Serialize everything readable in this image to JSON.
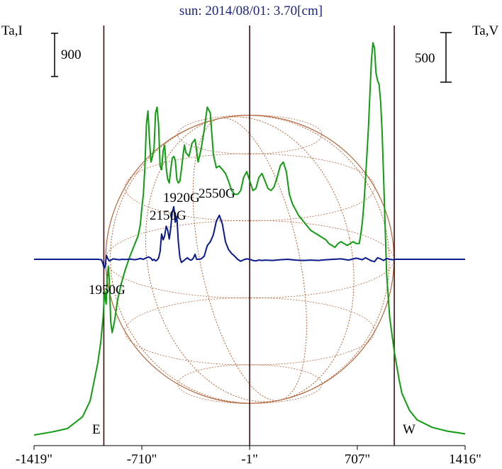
{
  "title": "sun: 2014/08/01: 3.70[cm]",
  "left_axis_label": "Ta,I",
  "right_axis_label": "Ta,V",
  "left_scale_label": "900",
  "right_scale_label": "500",
  "east_label": "E",
  "west_label": "W",
  "x_tick_labels": [
    "-1419\"",
    "-710\"",
    "-1\"",
    "707\"",
    "1416\""
  ],
  "annotations": [
    "1920G",
    "2550G",
    "2150G",
    "1950G"
  ],
  "colors": {
    "intensity": "#119c11",
    "polarization": "#0a1a8c",
    "disk": "#b5643a",
    "markers": "#3a1010",
    "title": "#1a237e"
  },
  "chart_data": {
    "type": "line",
    "title": "sun: 2014/08/01: 3.70[cm]",
    "xlabel": "",
    "ylabel": "Ta,I",
    "ylabel_right": "Ta,V",
    "xlim": [
      -1419,
      1416
    ],
    "x_ticks": [
      -1419,
      -710,
      -1,
      707,
      1416
    ],
    "vertical_markers": [
      -960,
      -1,
      950
    ],
    "disk_radius": 948,
    "series": [
      {
        "x": [
          -1419,
          -1300,
          -1200,
          -1100,
          -1050,
          -1000,
          -980,
          -965,
          -955,
          -945,
          -938,
          -930,
          -922,
          -915,
          -905,
          -890,
          -870,
          -845,
          -820,
          -790,
          -760,
          -735,
          -720,
          -710,
          -700,
          -690,
          -680,
          -670,
          -660,
          -650,
          -640,
          -630,
          -620,
          -610,
          -600,
          -590,
          -580,
          -570,
          -560,
          -550,
          -540,
          -530,
          -520,
          -510,
          -500,
          -490,
          -480,
          -470,
          -460,
          -450,
          -440,
          -430,
          -420,
          -400,
          -380,
          -360,
          -340,
          -320,
          -300,
          -280,
          -260,
          -240,
          -220,
          -200,
          -180,
          -160,
          -140,
          -120,
          -100,
          -80,
          -60,
          -40,
          -20,
          0,
          20,
          40,
          60,
          80,
          100,
          120,
          140,
          160,
          180,
          200,
          220,
          240,
          260,
          280,
          300,
          320,
          340,
          360,
          380,
          400,
          420,
          440,
          460,
          480,
          500,
          520,
          540,
          560,
          580,
          600,
          620,
          640,
          660,
          680,
          700,
          720,
          730,
          740,
          750,
          760,
          770,
          780,
          790,
          800,
          810,
          820,
          830,
          840,
          850,
          860,
          870,
          880,
          890,
          900,
          920,
          950,
          980,
          1000,
          1050,
          1100,
          1200,
          1300,
          1416
        ],
        "values": [
          0,
          80,
          170,
          480,
          900,
          1900,
          2450,
          3100,
          3800,
          3450,
          4150,
          4450,
          3900,
          3000,
          2700,
          3000,
          3550,
          4000,
          4350,
          4700,
          5000,
          5250,
          5550,
          6000,
          6350,
          7050,
          8200,
          8550,
          7800,
          7200,
          7350,
          7550,
          8500,
          8650,
          8200,
          7100,
          7000,
          7500,
          7650,
          7050,
          6750,
          6650,
          7000,
          7300,
          7350,
          7250,
          6750,
          6650,
          6700,
          7000,
          7350,
          7650,
          7450,
          7350,
          7700,
          7800,
          7200,
          7550,
          8050,
          8650,
          8500,
          7400,
          7050,
          7100,
          7000,
          6900,
          6700,
          6450,
          6350,
          6350,
          6450,
          6800,
          6950,
          6700,
          6450,
          6500,
          6800,
          6900,
          6700,
          6500,
          6450,
          6550,
          6800,
          7100,
          7200,
          6950,
          6350,
          6100,
          5950,
          5800,
          5700,
          5600,
          5500,
          5400,
          5350,
          5300,
          5250,
          5200,
          5150,
          5050,
          5000,
          4950,
          5050,
          5100,
          5050,
          5000,
          5050,
          5100,
          5050,
          5050,
          5300,
          5600,
          6100,
          6700,
          7400,
          8100,
          9000,
          9900,
          10350,
          10200,
          9550,
          9350,
          9250,
          8800,
          8000,
          6800,
          5500,
          4250,
          3100,
          2200,
          1500,
          1100,
          650,
          400,
          200,
          100,
          30
        ]
      },
      {
        "x": [
          -1419,
          -1000,
          -975,
          -965,
          -958,
          -950,
          -943,
          -935,
          -925,
          -912,
          -900,
          -880,
          -860,
          -840,
          -820,
          -800,
          -780,
          -760,
          -740,
          -720,
          -700,
          -680,
          -665,
          -650,
          -640,
          -630,
          -620,
          -610,
          -600,
          -590,
          -580,
          -570,
          -560,
          -550,
          -540,
          -530,
          -520,
          -510,
          -500,
          -490,
          -480,
          -470,
          -460,
          -450,
          -440,
          -430,
          -420,
          -410,
          -400,
          -390,
          -380,
          -370,
          -360,
          -350,
          -340,
          -320,
          -300,
          -280,
          -260,
          -240,
          -220,
          -200,
          -180,
          -160,
          -140,
          -120,
          -100,
          -80,
          -60,
          -40,
          -20,
          0,
          20,
          40,
          60,
          80,
          100,
          150,
          200,
          250,
          300,
          350,
          400,
          450,
          500,
          550,
          600,
          650,
          700,
          740,
          760,
          780,
          800,
          820,
          840,
          860,
          880,
          900,
          920,
          940,
          960,
          1000,
          1100,
          1200,
          1416
        ],
        "values": [
          0,
          0,
          -10,
          -120,
          -230,
          -150,
          100,
          30,
          -40,
          -20,
          10,
          0,
          -10,
          0,
          -5,
          0,
          5,
          -10,
          0,
          20,
          0,
          40,
          60,
          30,
          -30,
          0,
          -40,
          -20,
          30,
          200,
          650,
          500,
          600,
          850,
          750,
          520,
          800,
          1200,
          1350,
          950,
          1100,
          450,
          50,
          -80,
          -50,
          -20,
          10,
          40,
          0,
          -20,
          -10,
          40,
          130,
          0,
          0,
          10,
          80,
          350,
          450,
          630,
          980,
          1130,
          900,
          450,
          250,
          150,
          80,
          0,
          -50,
          -10,
          10,
          0,
          -30,
          -40,
          -20,
          -30,
          -20,
          -30,
          -10,
          0,
          -20,
          -30,
          -20,
          -30,
          -10,
          0,
          10,
          -20,
          30,
          -10,
          40,
          0,
          -40,
          -60,
          40,
          10,
          -30,
          20,
          0,
          -10,
          0,
          0,
          0,
          0,
          0
        ]
      }
    ]
  }
}
